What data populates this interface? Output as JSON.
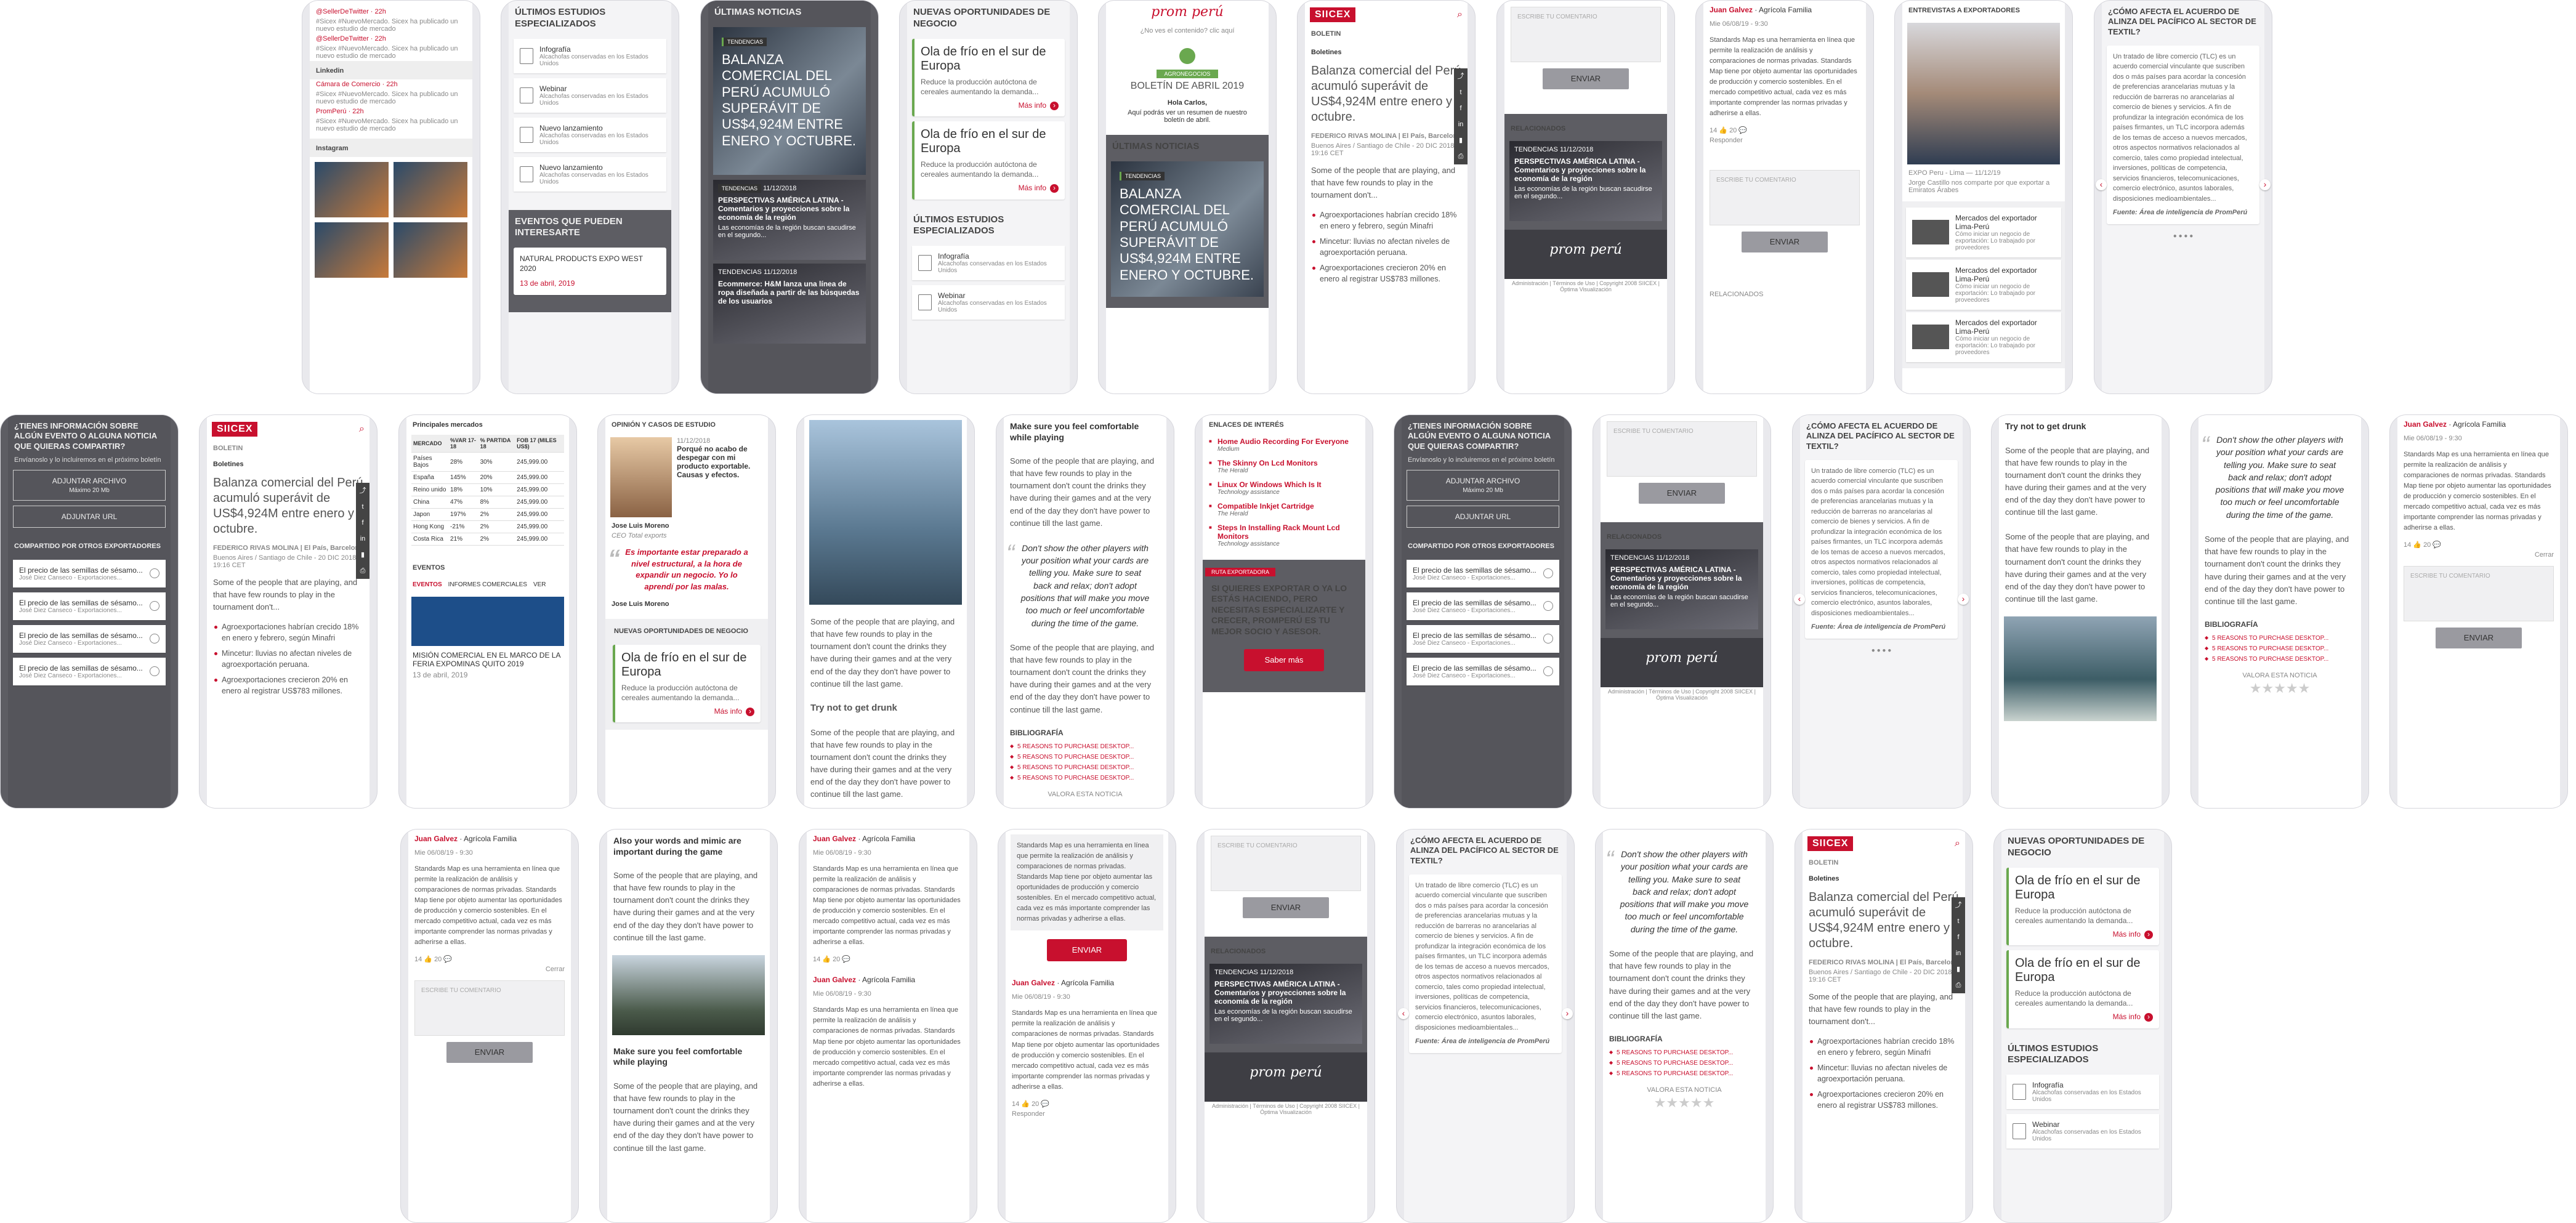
{
  "texts": {
    "latest_news": "ÚLTIMAS NOTICIAS",
    "new_opps": "NUEVAS OPORTUNIDADES DE NEGOCIO",
    "latest_studies": "ÚLTIMOS ESTUDIOS ESPECIALIZADOS",
    "events": "EVENTOS QUE PUEDEN INTERESARTE",
    "event_title": "NATURAL PRODUCTS EXPO WEST 2020",
    "event_date": "13 de abril, 2019",
    "headline": "BALANZA COMERCIAL DEL PERÚ ACUMULÓ SUPERÁVIT DE US$4,924M ENTRE ENERO Y OCTUBRE.",
    "headline_case": "Balanza comercial del Perú acumuló superávit de US$4,924M entre enero y octubre.",
    "tag": "TENDENCIAS",
    "date": "11/12/2018",
    "cold": "Ola de frío en el sur de Europa",
    "cold_desc": "Reduce la producción autóctona de cereales aumentando la demanda...",
    "more": "Más info",
    "doc1": "Infografía",
    "doc2": "Webinar",
    "doc3": "Nuevo lanzamiento",
    "doc_sub": "Alcachofas conservadas en los Estados Unidos",
    "mini1": "PERSPECTIVAS AMÉRICA LATINA - Comentarios y proyecciones sobre la economía de la región",
    "mini1_sub": "Las economías de la región buscan sacudirse en el segundo...",
    "mini2": "Ecommerce: H&M lanza una línea de ropa diseñada a partir de las búsquedas de los usuarios",
    "boletin": "BOLETIN",
    "boletines": "Boletines",
    "byline": "FEDERICO RIVAS MOLINA | El País, Barcelona",
    "place": "Buenos Aires / Santiago de Chile - 20 DIC 2018 - 19:16 CET",
    "lead": "Some of the people that are playing, and that have few rounds to play in the tournament don't...",
    "b1": "Agroexportaciones habrían crecido 18% en enero y febrero, según Minafri",
    "b2": "Mincetur: lluvias no afectan niveles de agroexportación peruana.",
    "b3": "Agroexportaciones crecieron 20% en enero al registrar US$783 millones.",
    "send": "ENVIAR",
    "write": "ESCRIBE TU COMENTARIO",
    "relacionados": "RELACIONADOS",
    "footer": "Administración | Términos de Uso | Copyright 2008 SIICEX | Óptima Visualización",
    "siicex": "SIICEX",
    "logo": "prom perú",
    "mail_q": "¿No ves el contenido? clic aquí",
    "agro": "AGRONEGOCIOS",
    "mail_title": "BOLETÍN DE ABRIL 2019",
    "hello": "Hola Carlos,",
    "mail_body": "Aquí podrás ver un resumen de nuestro boletín de abril.",
    "interviews": "ENTREVISTAS A EXPORTADORES",
    "expo": "EXPO Peru - Lima",
    "expo_person": "Jorge Castillo nos comparte por que exportar a Emiratos Árabes",
    "fta": "¿CÓMO AFECTA EL ACUERDO DE ALINZA DEL PACÍFICO AL SECTOR DE TEXTIL?",
    "fta_body": "Un tratado de libre comercio (TLC) es un acuerdo comercial vinculante que suscriben dos o más países para acordar la concesión de preferencias arancelarias mutuas y la reducción de barreras no arancelarias al comercio de bienes y servicios. A fin de profundizar la integración económica de los países firmantes, un TLC incorpora además de los temas de acceso a nuevos mercados, otros aspectos normativos relacionados al comercio, tales como propiedad intelectual, inversiones, políticas de competencia, servicios financieros, telecomunicaciones, comercio electrónico, asuntos laborales, disposiciones medioambientales...",
    "source": "Fuente: Área de inteligencia de PromPerú",
    "question": "¿TIENES INFORMACIÓN SOBRE ALGÚN EVENTO O ALGUNA NOTICIA QUE QUIERAS COMPARTIR?",
    "question_sub": "Envíanoslo y lo incluiremos en el próximo boletín",
    "attach_file": "ADJUNTAR ARCHIVO",
    "attach_max": "Máximo 20 Mb",
    "attach_url": "ADJUNTAR URL",
    "shared": "COMPARTIDO POR OTROS EXPORTADORES",
    "seed": "El precio de las semillas de sésamo...",
    "seed_by": "José Diez Canseco - Exportaciones...",
    "markets": "Principales mercados",
    "opinion": "OPINIÓN Y CASOS DE ESTUDIO",
    "op_quote": "Porqué no acabo de despegar con mi producto exportable. Causas y efectos.",
    "op_name": "Jose Luis Moreno",
    "op_role": "CEO Total exports",
    "op_q2": "Es importante estar preparado a nivel estructural, a la hora de expandir un negocio. Yo lo aprendí por las malas.",
    "tab1": "EVENTOS",
    "tab2": "INFORMES COMERCIALES",
    "tab3": "VER",
    "mission": "MISIÓN COMERCIAL EN EL MARCO DE LA FERIA EXPOMINAS QUITO 2019",
    "playing": "Make sure you feel comfortable while playing",
    "play_body": "Some of the people that are playing, and that have few rounds to play in the tournament don't count the drinks they have during their games and at the very end of the day they don't have power to continue till the last game.",
    "big_quote": "Don't show the other players with your position what your cards are telling you. Make sure to seat back and relax; don't adopt positions that will make you move too much or feel uncomfortable during the time of the game.",
    "biblio": "BIBLIOGRAFÍA",
    "reasons": "5 REASONS TO PURCHASE DESKTOP...",
    "rate": "VALORA ESTA NOTICIA",
    "drunk": "Try not to get drunk",
    "links_h": "ENLACES DE INTERÉS",
    "link1": "Home Audio Recording For Everyone",
    "link1s": "Medium",
    "link2": "The Skinny On Lcd Monitors",
    "link2s": "The Herald",
    "link3": "Linux Or Windows Which Is It",
    "link3s": "Technology assistance",
    "link4": "Compatible Inkjet Cartridge",
    "link4s": "The Herald",
    "link5": "Steps In Installing Rack Mount Lcd Monitors",
    "link5s": "Technology assistance",
    "route": "RUTA EXPORTADORA",
    "route_q": "SI QUIERES EXPORTAR O YA LO ESTÁS HACIENDO, PERO NECESITAS ESPECIALIZARTE Y CRECER, PROMPERÚ ES TU MEJOR SOCIO Y ASESOR.",
    "know": "Saber más",
    "commenter": "Juan Galvez",
    "commenter_co": "Agrícola Familia",
    "comment_date": "Mie 06/08/19 - 9:30",
    "comment": "Standards Map es una herramienta en línea que permite la realización de análisis y comparaciones de normas privadas. Standards Map tiene por objeto aumentar las oportunidades de producción y comercio sostenibles. En el mercado competitivo actual, cada vez es más importante comprender las normas privadas y adherirse a ellas.",
    "reply": "Responder",
    "cancel": "Cerrar",
    "also": "Also your words and mimic are important during the game",
    "twitter": "@SellerDeTwitter · 22h",
    "tw_body": "#Sicex #NuevoMercado. Sicex ha publicado un nuevo estudio de mercado",
    "linkedin": "Linkedin",
    "camara": "Cámara de Comercio · 22h",
    "promperu": "PromPerú · 22h",
    "instagram": "Instagram",
    "video_t": "Mercados del exportador Lima-Perú",
    "video_d": "Cómo iniciar un negocio de exportación: Lo trabajado por proveedores",
    "video_date": "11/12/19",
    "likes": "14",
    "comments": "20"
  },
  "markets_table": {
    "headers": [
      "MERCADO",
      "%VAR 17-18",
      "% PARTIDA 18",
      "FOB 17 (MILES US$)"
    ],
    "rows": [
      [
        "Países Bajos",
        "28%",
        "30%",
        "245,999.00"
      ],
      [
        "España",
        "145%",
        "20%",
        "245,999.00"
      ],
      [
        "Reino unido",
        "18%",
        "10%",
        "245,999.00"
      ],
      [
        "China",
        "47%",
        "8%",
        "245,999.00"
      ],
      [
        "Japon",
        "197%",
        "2%",
        "245,999.00"
      ],
      [
        "Hong Kong",
        "-21%",
        "2%",
        "245,999.00"
      ],
      [
        "Costa Rica",
        "21%",
        "2%",
        "245,999.00"
      ]
    ]
  }
}
